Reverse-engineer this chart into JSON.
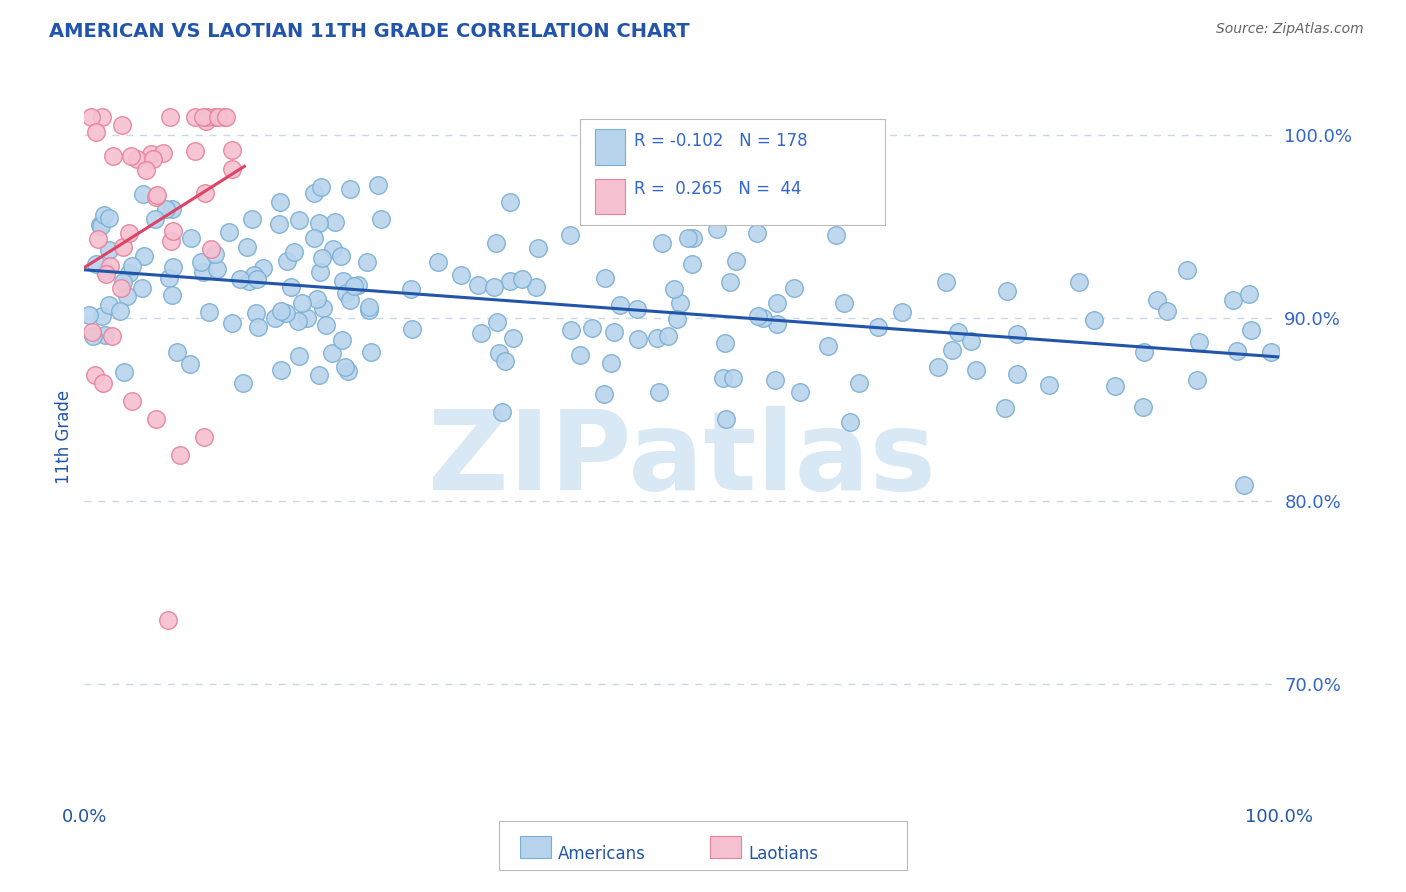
{
  "title": "AMERICAN VS LAOTIAN 11TH GRADE CORRELATION CHART",
  "source": "Source: ZipAtlas.com",
  "ylabel": "11th Grade",
  "xlim": [
    0.0,
    1.0
  ],
  "ylim": [
    0.635,
    1.035
  ],
  "yticks": [
    0.7,
    0.8,
    0.9,
    1.0
  ],
  "ytick_labels": [
    "70.0%",
    "80.0%",
    "90.0%",
    "100.0%"
  ],
  "american_R": -0.102,
  "american_N": 178,
  "laotian_R": 0.265,
  "laotian_N": 44,
  "american_color": "#b8d4ed",
  "american_edge": "#7aafd4",
  "laotian_color": "#f5c0d0",
  "laotian_edge": "#e8809a",
  "trend_american_color": "#2255aa",
  "trend_laotian_color": "#dd4466",
  "legend_color": "#3366cc",
  "source_color": "#666666",
  "title_color": "#2255aa",
  "background_color": "#ffffff",
  "grid_color": "#c8d8e8",
  "watermark": "ZIPatlas",
  "watermark_color": "#d8e8f4"
}
